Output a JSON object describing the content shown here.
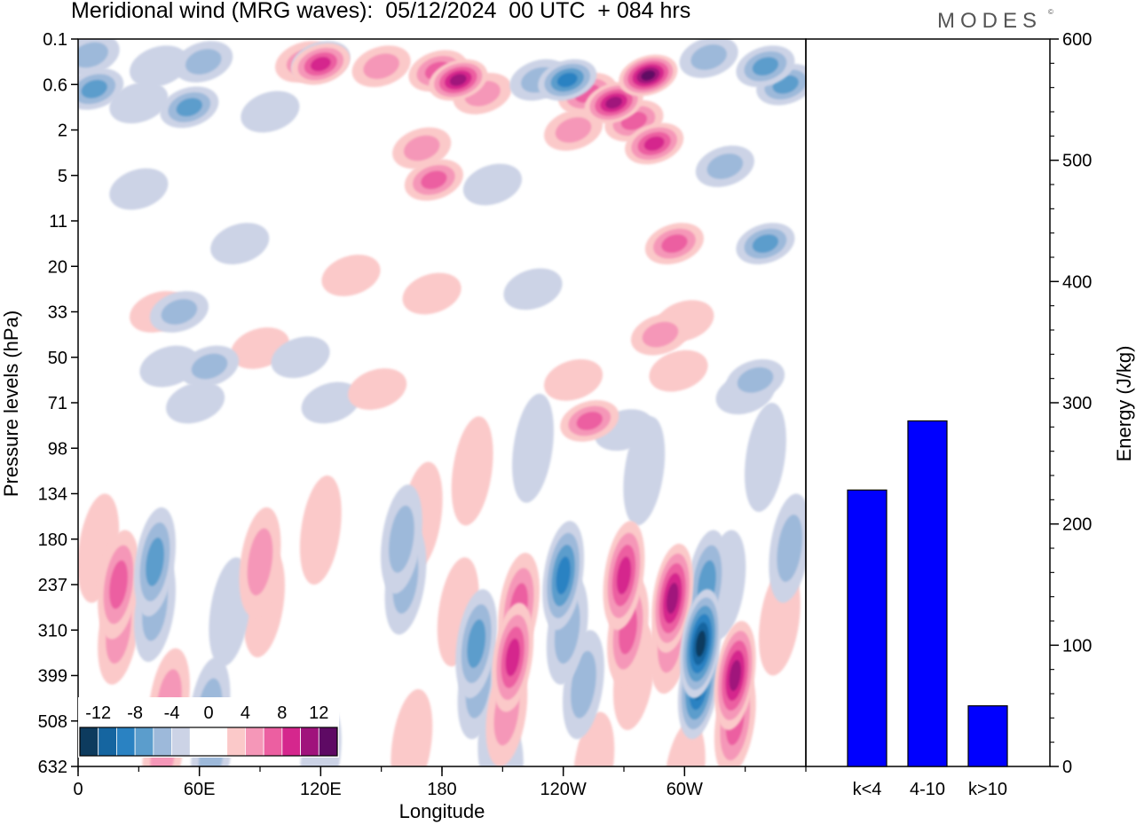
{
  "title": "Meridional wind (MRG waves):  05/12/2024  00 UTC  + 084 hrs",
  "brand": "MODES",
  "brand_mark": "©",
  "chart_data": [
    {
      "type": "heatmap",
      "title": "Meridional wind (MRG waves):  05/12/2024  00 UTC  + 084 hrs",
      "xlabel": "Longitude",
      "ylabel": "Pressure levels (hPa)",
      "x_ticks": [
        "0",
        "60E",
        "120E",
        "180",
        "120W",
        "60W"
      ],
      "x_tick_degrees": [
        0,
        60,
        120,
        180,
        240,
        300
      ],
      "xlim": [
        0,
        360
      ],
      "y_ticks": [
        "0.1",
        "0.6",
        "2",
        "5",
        "11",
        "20",
        "33",
        "50",
        "71",
        "98",
        "134",
        "180",
        "237",
        "310",
        "399",
        "508",
        "632"
      ],
      "colorbar": {
        "labels": [
          "-12",
          "-8",
          "-4",
          "0",
          "4",
          "8",
          "12"
        ],
        "colors": [
          "#0d3b5e",
          "#1565a0",
          "#2a82c2",
          "#5b9dcc",
          "#9db9da",
          "#ccd3e6",
          "#ffffff",
          "#ffffff",
          "#fbc9c9",
          "#f597b8",
          "#ec5fa1",
          "#d5278d",
          "#a0137c",
          "#5e0a64"
        ]
      },
      "blobs": [
        {
          "lon": 8,
          "lev": 1.1,
          "v": -6
        },
        {
          "lon": 6,
          "lev": 0.35,
          "v": -4
        },
        {
          "lon": 30,
          "lev": 1.4,
          "v": -2
        },
        {
          "lon": 55,
          "lev": 1.5,
          "v": -5
        },
        {
          "lon": 40,
          "lev": 0.6,
          "v": -2
        },
        {
          "lon": 62,
          "lev": 0.5,
          "v": -3
        },
        {
          "lon": 95,
          "lev": 1.6,
          "v": -2
        },
        {
          "lon": 120,
          "lev": 0.5,
          "v": -4
        },
        {
          "lon": 112,
          "lev": 0.5,
          "v": 3
        },
        {
          "lon": 120,
          "lev": 0.55,
          "v": 7
        },
        {
          "lon": 150,
          "lev": 0.6,
          "v": 3
        },
        {
          "lon": 178,
          "lev": 0.7,
          "v": 5
        },
        {
          "lon": 188,
          "lev": 0.9,
          "v": 9
        },
        {
          "lon": 200,
          "lev": 1.2,
          "v": 4
        },
        {
          "lon": 170,
          "lev": 2.4,
          "v": 3
        },
        {
          "lon": 176,
          "lev": 3.1,
          "v": 6
        },
        {
          "lon": 228,
          "lev": 0.9,
          "v": -4
        },
        {
          "lon": 242,
          "lev": 0.9,
          "v": -7
        },
        {
          "lon": 252,
          "lev": 1.2,
          "v": 6
        },
        {
          "lon": 265,
          "lev": 1.4,
          "v": 10
        },
        {
          "lon": 282,
          "lev": 0.8,
          "v": 11
        },
        {
          "lon": 285,
          "lev": 2.3,
          "v": 7
        },
        {
          "lon": 295,
          "lev": 4.5,
          "v": 5
        },
        {
          "lon": 288,
          "lev": 6.5,
          "v": 4
        },
        {
          "lon": 245,
          "lev": 2.0,
          "v": 3
        },
        {
          "lon": 275,
          "lev": 1.8,
          "v": 6
        },
        {
          "lon": 312,
          "lev": 0.4,
          "v": -4
        },
        {
          "lon": 340,
          "lev": 0.6,
          "v": -6
        },
        {
          "lon": 350,
          "lev": 1.0,
          "v": -5
        },
        {
          "lon": 320,
          "lev": 2.8,
          "v": -3
        },
        {
          "lon": 340,
          "lev": 4.5,
          "v": -6
        },
        {
          "lon": 335,
          "lev": 7.5,
          "v": -4
        },
        {
          "lon": 225,
          "lev": 5.5,
          "v": -2
        },
        {
          "lon": 205,
          "lev": 3.2,
          "v": -2
        },
        {
          "lon": 175,
          "lev": 5.6,
          "v": 2
        },
        {
          "lon": 135,
          "lev": 5.2,
          "v": 2
        },
        {
          "lon": 80,
          "lev": 4.5,
          "v": -2
        },
        {
          "lon": 30,
          "lev": 3.3,
          "v": -2
        },
        {
          "lon": 40,
          "lev": 6.0,
          "v": 2
        },
        {
          "lon": 45,
          "lev": 7.2,
          "v": -2
        },
        {
          "lon": 50,
          "lev": 6.0,
          "v": -4
        },
        {
          "lon": 65,
          "lev": 7.2,
          "v": -4
        },
        {
          "lon": 58,
          "lev": 8.0,
          "v": -2
        },
        {
          "lon": 90,
          "lev": 6.8,
          "v": 2
        },
        {
          "lon": 110,
          "lev": 7.0,
          "v": -2
        },
        {
          "lon": 125,
          "lev": 8.0,
          "v": -2
        },
        {
          "lon": 148,
          "lev": 7.7,
          "v": 2
        },
        {
          "lon": 245,
          "lev": 7.5,
          "v": 2
        },
        {
          "lon": 253,
          "lev": 8.4,
          "v": 6
        },
        {
          "lon": 270,
          "lev": 8.6,
          "v": -2
        },
        {
          "lon": 297,
          "lev": 7.3,
          "v": 2
        },
        {
          "lon": 300,
          "lev": 6.2,
          "v": 2
        },
        {
          "lon": 330,
          "lev": 7.8,
          "v": -2
        },
        {
          "lon": 340,
          "lev": 9.2,
          "v": -2
        },
        {
          "lon": 195,
          "lev": 9.5,
          "v": 2
        },
        {
          "lon": 225,
          "lev": 9.0,
          "v": -2
        },
        {
          "lon": 10,
          "lev": 11.2,
          "v": 2
        },
        {
          "lon": 20,
          "lev": 12.0,
          "v": 6
        },
        {
          "lon": 20,
          "lev": 13.0,
          "v": 3
        },
        {
          "lon": 38,
          "lev": 11.5,
          "v": -6
        },
        {
          "lon": 38,
          "lev": 12.5,
          "v": -3
        },
        {
          "lon": 45,
          "lev": 14.6,
          "v": 3
        },
        {
          "lon": 42,
          "lev": 15.7,
          "v": 4
        },
        {
          "lon": 65,
          "lev": 14.8,
          "v": -3
        },
        {
          "lon": 66,
          "lev": 15.7,
          "v": -4
        },
        {
          "lon": 90,
          "lev": 11.5,
          "v": 3
        },
        {
          "lon": 92,
          "lev": 12.4,
          "v": 2
        },
        {
          "lon": 75,
          "lev": 12.6,
          "v": -2
        },
        {
          "lon": 120,
          "lev": 10.8,
          "v": 2
        },
        {
          "lon": 160,
          "lev": 11.0,
          "v": -4
        },
        {
          "lon": 162,
          "lev": 11.9,
          "v": -3
        },
        {
          "lon": 170,
          "lev": 10.5,
          "v": 2
        },
        {
          "lon": 188,
          "lev": 12.6,
          "v": 2
        },
        {
          "lon": 197,
          "lev": 13.3,
          "v": -5
        },
        {
          "lon": 198,
          "lev": 14.2,
          "v": -4
        },
        {
          "lon": 208,
          "lev": 15.2,
          "v": -2
        },
        {
          "lon": 218,
          "lev": 12.5,
          "v": 6
        },
        {
          "lon": 215,
          "lev": 13.6,
          "v": 7
        },
        {
          "lon": 212,
          "lev": 14.8,
          "v": 4
        },
        {
          "lon": 240,
          "lev": 11.8,
          "v": -7
        },
        {
          "lon": 242,
          "lev": 13.0,
          "v": -4
        },
        {
          "lon": 250,
          "lev": 14.2,
          "v": -3
        },
        {
          "lon": 270,
          "lev": 11.8,
          "v": 8
        },
        {
          "lon": 272,
          "lev": 13.0,
          "v": 5
        },
        {
          "lon": 275,
          "lev": 14.0,
          "v": 2
        },
        {
          "lon": 294,
          "lev": 12.3,
          "v": 9
        },
        {
          "lon": 293,
          "lev": 13.2,
          "v": 4
        },
        {
          "lon": 308,
          "lev": 13.3,
          "v": -11
        },
        {
          "lon": 307,
          "lev": 14.2,
          "v": -9
        },
        {
          "lon": 311,
          "lev": 12.0,
          "v": -5
        },
        {
          "lon": 320,
          "lev": 12.0,
          "v": -2
        },
        {
          "lon": 325,
          "lev": 14.0,
          "v": 9
        },
        {
          "lon": 325,
          "lev": 15.0,
          "v": 5
        },
        {
          "lon": 352,
          "lev": 11.2,
          "v": -3
        },
        {
          "lon": 347,
          "lev": 12.8,
          "v": 2
        },
        {
          "lon": 280,
          "lev": 9.5,
          "v": -2
        },
        {
          "lon": 210,
          "lev": 16.3,
          "v": -2
        },
        {
          "lon": 255,
          "lev": 16.0,
          "v": 2
        },
        {
          "lon": 165,
          "lev": 15.5,
          "v": 2
        },
        {
          "lon": 120,
          "lev": 15.8,
          "v": -2
        },
        {
          "lon": 300,
          "lev": 16.2,
          "v": 2
        }
      ]
    },
    {
      "type": "bar",
      "categories": [
        "k<4",
        "4-10",
        "k>10"
      ],
      "values": [
        228,
        285,
        50
      ],
      "ylabel": "Energy (J/kg)",
      "ylim": [
        0,
        600
      ],
      "y_ticks": [
        "0",
        "100",
        "200",
        "300",
        "400",
        "500",
        "600"
      ],
      "bar_color": "#0000ff"
    }
  ]
}
